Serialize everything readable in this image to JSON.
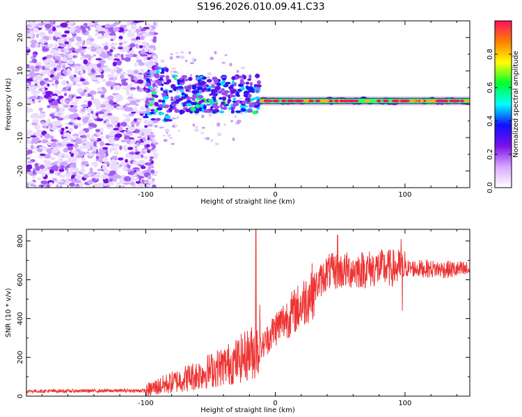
{
  "title": "S196.2026.010.09.41.C33",
  "chart_data": [
    {
      "type": "heatmap",
      "description_id": "spectrogram",
      "xlabel": "Height of straight line (km)",
      "ylabel": "Frequency (Hz)",
      "xlim": [
        -192,
        150
      ],
      "ylim": [
        -25,
        25
      ],
      "xticks": [
        -100,
        0,
        100
      ],
      "xtick_labels": [
        "-100",
        "0",
        "100"
      ],
      "yticks": [
        -20,
        -10,
        0,
        10,
        20
      ],
      "ytick_labels": [
        "-20",
        "-10",
        "0",
        "10",
        "20"
      ],
      "line_frequency": 1.0,
      "line_start": -12,
      "noise_end": -100,
      "colorbar": {
        "label": "Normalized spectral amplitude",
        "range": [
          0,
          1
        ],
        "ticks": [
          0.0,
          0.2,
          0.4,
          0.6,
          0.8
        ],
        "tick_labels": [
          "0.0",
          "0.2",
          "0.4",
          "0.6",
          "0.8"
        ],
        "colors": [
          "#ffffff",
          "#d8a8ff",
          "#7a10e8",
          "#1010ff",
          "#00ffff",
          "#00ff30",
          "#ffff00",
          "#ff8000",
          "#ff1060"
        ]
      }
    },
    {
      "type": "line",
      "description_id": "snr",
      "xlabel": "Height of straight line (km)",
      "ylabel": "SNR (10 * v/v)",
      "xlim": [
        -192,
        150
      ],
      "ylim": [
        0,
        860
      ],
      "xticks": [
        -100,
        0,
        100
      ],
      "xtick_labels": [
        "-100",
        "0",
        "100"
      ],
      "yticks": [
        0,
        200,
        400,
        600,
        800
      ],
      "ytick_labels": [
        "0",
        "200",
        "400",
        "600",
        "800"
      ],
      "color": "#ee3333",
      "trend": {
        "x": [
          -192,
          -100,
          -95,
          -60,
          -30,
          -20,
          -12,
          0,
          20,
          40,
          80,
          100,
          150
        ],
        "y": [
          22,
          25,
          40,
          110,
          180,
          220,
          240,
          350,
          470,
          640,
          660,
          660,
          650
        ]
      },
      "spikes": [
        {
          "x": -15,
          "y": 860
        },
        {
          "x": -12,
          "y": 470
        },
        {
          "x": 97,
          "y": 810
        },
        {
          "x": 98,
          "y": 440
        },
        {
          "x": 48,
          "y": 830
        }
      ]
    }
  ]
}
